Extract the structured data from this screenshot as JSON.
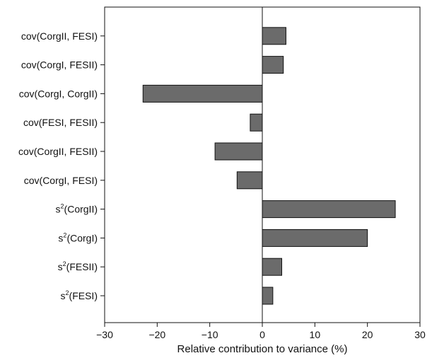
{
  "chart_data": {
    "type": "bar",
    "orientation": "horizontal",
    "categories": [
      {
        "label": "cov(CorgII, FESI)",
        "value": 4.5
      },
      {
        "label": "cov(CorgI, FESII)",
        "value": 4.0
      },
      {
        "label": "cov(CorgI, CorgII)",
        "value": -22.7
      },
      {
        "label": "cov(FESI, FESII)",
        "value": -2.3
      },
      {
        "label": "cov(CorgII, FESII)",
        "value": -9.0
      },
      {
        "label": "cov(CorgI, FESI)",
        "value": -4.8
      },
      {
        "label": "s2(CorgII)",
        "base": "s",
        "sup": "2",
        "rest": "(CorgII)",
        "value": 25.3
      },
      {
        "label": "s2(CorgI)",
        "base": "s",
        "sup": "2",
        "rest": "(CorgI)",
        "value": 20.0
      },
      {
        "label": "s2(FESII)",
        "base": "s",
        "sup": "2",
        "rest": "(FESII)",
        "value": 3.7
      },
      {
        "label": "s2(FESI)",
        "base": "s",
        "sup": "2",
        "rest": "(FESI)",
        "value": 2.0
      }
    ],
    "xlabel": "Relative contribution to variance (%)",
    "ylabel": "",
    "title": "",
    "xlim": [
      -30,
      30
    ],
    "xticks": [
      -30,
      -20,
      -10,
      0,
      10,
      20,
      30
    ],
    "xtick_labels": [
      "−30",
      "−20",
      "−10",
      "0",
      "10",
      "20",
      "30"
    ],
    "grid": false,
    "zero_line": true,
    "bar_fill": "#6b6b6b",
    "bar_stroke": "#111111"
  }
}
